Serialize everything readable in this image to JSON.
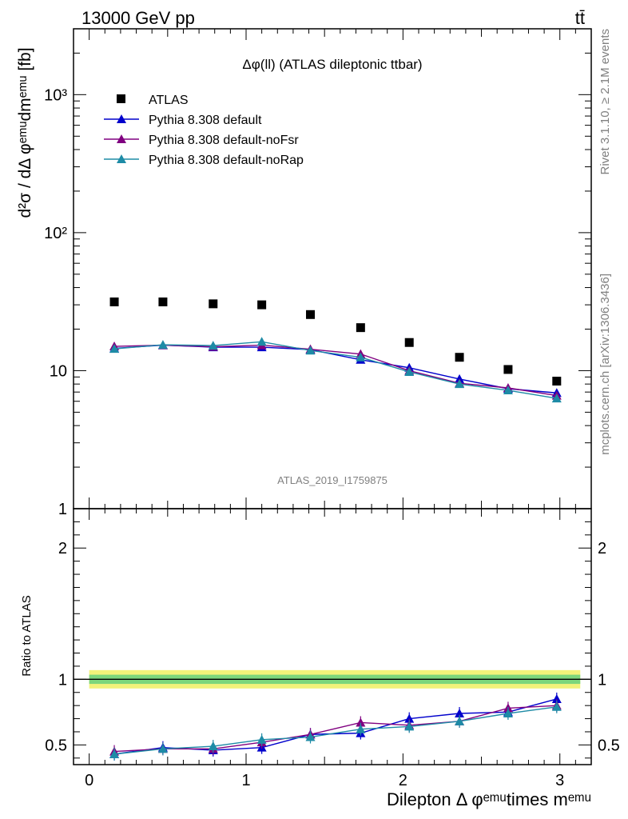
{
  "header": {
    "energy_label": "13000 GeV pp",
    "process_label": "tt̄"
  },
  "side": {
    "rivet_label": "Rivet 3.1.10, ≥ 2.1M events",
    "source_label": "mcplots.cern.ch [arXiv:1306.3436]"
  },
  "analysis_label": "ATLAS_2019_I1759875",
  "chart_data": [
    {
      "type": "scatter",
      "panel": "main",
      "title": "Δφ(ll) (ATLAS dileptonic ttbar)",
      "ylabel": "d²σ / dΔ φᵉᵐᵘdmᵉᵐᵘ [fb]",
      "yscale": "log",
      "ylim": [
        1,
        3000
      ],
      "xlim": [
        -0.1,
        3.2
      ],
      "y_tick_labels": [
        "1",
        "10",
        "10²",
        "10³"
      ],
      "legend_position": "top-left",
      "x": [
        0.16,
        0.47,
        0.79,
        1.1,
        1.41,
        1.73,
        2.04,
        2.36,
        2.67,
        2.98
      ],
      "series": [
        {
          "name": "ATLAS",
          "marker": "square",
          "color": "#000000",
          "values": [
            31.5,
            31.5,
            30.5,
            30.0,
            25.5,
            20.5,
            16.0,
            12.5,
            10.2,
            8.4
          ]
        },
        {
          "name": "Pythia 8.308 default",
          "marker": "triangle",
          "color": "#0000cc",
          "values": [
            14.5,
            15.3,
            14.8,
            14.8,
            14.2,
            12.0,
            10.5,
            8.7,
            7.4,
            6.9
          ]
        },
        {
          "name": "Pythia 8.308 default-noFsr",
          "marker": "triangle",
          "color": "#800080",
          "values": [
            15.0,
            15.3,
            14.9,
            15.3,
            14.3,
            13.2,
            10.0,
            8.1,
            7.5,
            6.6
          ]
        },
        {
          "name": "Pythia 8.308 default-noRap",
          "marker": "triangle",
          "color": "#1e8ba6",
          "values": [
            14.4,
            15.4,
            15.2,
            16.2,
            14.0,
            12.5,
            9.8,
            8.0,
            7.2,
            6.3
          ]
        }
      ]
    },
    {
      "type": "line",
      "panel": "ratio",
      "ylabel": "Ratio to ATLAS",
      "xlabel": "Dilepton Δ φᵉᵐᵘtimes mᵉᵐᵘ",
      "xlim": [
        -0.1,
        3.2
      ],
      "ylim": [
        0.35,
        2.3
      ],
      "x_tick_labels": [
        "0",
        "1",
        "2",
        "3"
      ],
      "y_tick_labels": [
        "0.5",
        "1",
        "2"
      ],
      "reference_band": {
        "center": 1.0,
        "inner": 0.035,
        "outer": 0.07,
        "inner_color": "#7cd67c",
        "outer_color": "#f2f27a"
      },
      "x": [
        0.16,
        0.47,
        0.79,
        1.1,
        1.41,
        1.73,
        2.04,
        2.36,
        2.67,
        2.98
      ],
      "series": [
        {
          "name": "Pythia 8.308 default",
          "color": "#0000cc",
          "values": [
            0.43,
            0.48,
            0.46,
            0.48,
            0.58,
            0.59,
            0.7,
            0.74,
            0.75,
            0.85
          ]
        },
        {
          "name": "Pythia 8.308 default-noFsr",
          "color": "#800080",
          "values": [
            0.45,
            0.47,
            0.47,
            0.52,
            0.58,
            0.67,
            0.65,
            0.68,
            0.78,
            0.8
          ]
        },
        {
          "name": "Pythia 8.308 default-noRap",
          "color": "#1e8ba6",
          "values": [
            0.43,
            0.47,
            0.49,
            0.54,
            0.56,
            0.62,
            0.64,
            0.68,
            0.74,
            0.79
          ]
        }
      ]
    }
  ]
}
